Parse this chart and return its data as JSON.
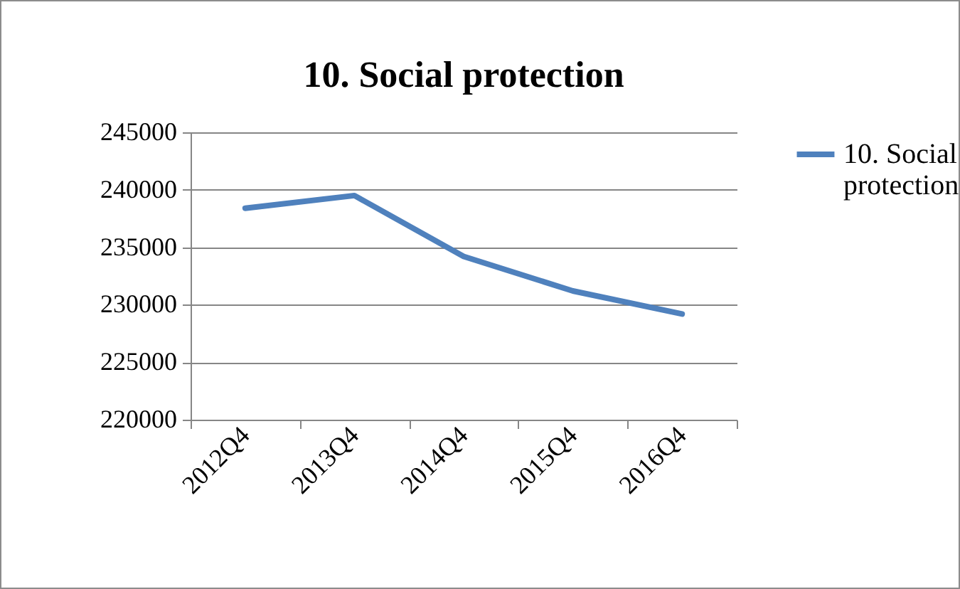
{
  "chart_data": {
    "type": "line",
    "title": "10. Social protection",
    "categories": [
      "2012Q4",
      "2013Q4",
      "2014Q4",
      "2015Q4",
      "2016Q4"
    ],
    "series": [
      {
        "name": "10. Social protection",
        "color": "#4f81bd",
        "values": [
          238400,
          239500,
          234200,
          231200,
          229200
        ]
      }
    ],
    "ylim": [
      220000,
      245000
    ],
    "yticks": [
      220000,
      225000,
      230000,
      235000,
      240000,
      245000
    ],
    "grid": "y",
    "legend": "right"
  }
}
